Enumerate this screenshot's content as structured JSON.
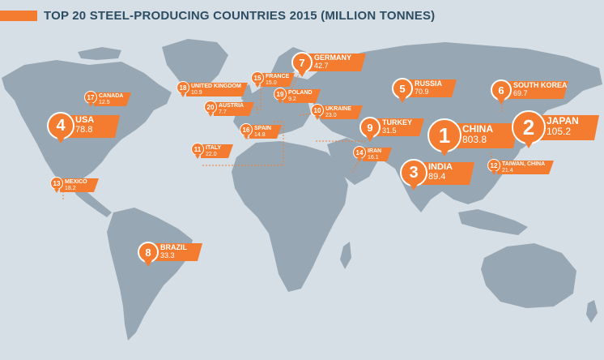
{
  "header": {
    "title": "TOP 20 STEEL-PRODUCING COUNTRIES 2015 (MILLION TONNES)"
  },
  "colors": {
    "accent": "#f47c30",
    "land": "#98a7b4",
    "ocean": "#d6dfe6",
    "title": "#2d4d63"
  },
  "markers": [
    {
      "rank": "1",
      "country": "CHINA",
      "value": "803.8"
    },
    {
      "rank": "2",
      "country": "JAPAN",
      "value": "105.2"
    },
    {
      "rank": "3",
      "country": "INDIA",
      "value": "89.4"
    },
    {
      "rank": "4",
      "country": "USA",
      "value": "78.8"
    },
    {
      "rank": "5",
      "country": "RUSSIA",
      "value": "70.9"
    },
    {
      "rank": "6",
      "country": "SOUTH KOREA",
      "value": "69.7"
    },
    {
      "rank": "7",
      "country": "GERMANY",
      "value": "42.7"
    },
    {
      "rank": "8",
      "country": "BRAZIL",
      "value": "33.3"
    },
    {
      "rank": "9",
      "country": "TURKEY",
      "value": "31.5"
    },
    {
      "rank": "10",
      "country": "UKRAINE",
      "value": "23.0"
    },
    {
      "rank": "11",
      "country": "ITALY",
      "value": "22.0"
    },
    {
      "rank": "12",
      "country": "TAIWAN, CHINA",
      "value": "21.4"
    },
    {
      "rank": "13",
      "country": "MEXICO",
      "value": "18.2"
    },
    {
      "rank": "14",
      "country": "IRAN",
      "value": "16.1"
    },
    {
      "rank": "15",
      "country": "FRANCE",
      "value": "15.0"
    },
    {
      "rank": "16",
      "country": "SPAIN",
      "value": "14.8"
    },
    {
      "rank": "17",
      "country": "CANADA",
      "value": "12.5"
    },
    {
      "rank": "18",
      "country": "UNITED KINGDOM",
      "value": "10.9"
    },
    {
      "rank": "19",
      "country": "POLAND",
      "value": "9.2"
    },
    {
      "rank": "20",
      "country": "AUSTRIA",
      "value": "7.7"
    }
  ]
}
